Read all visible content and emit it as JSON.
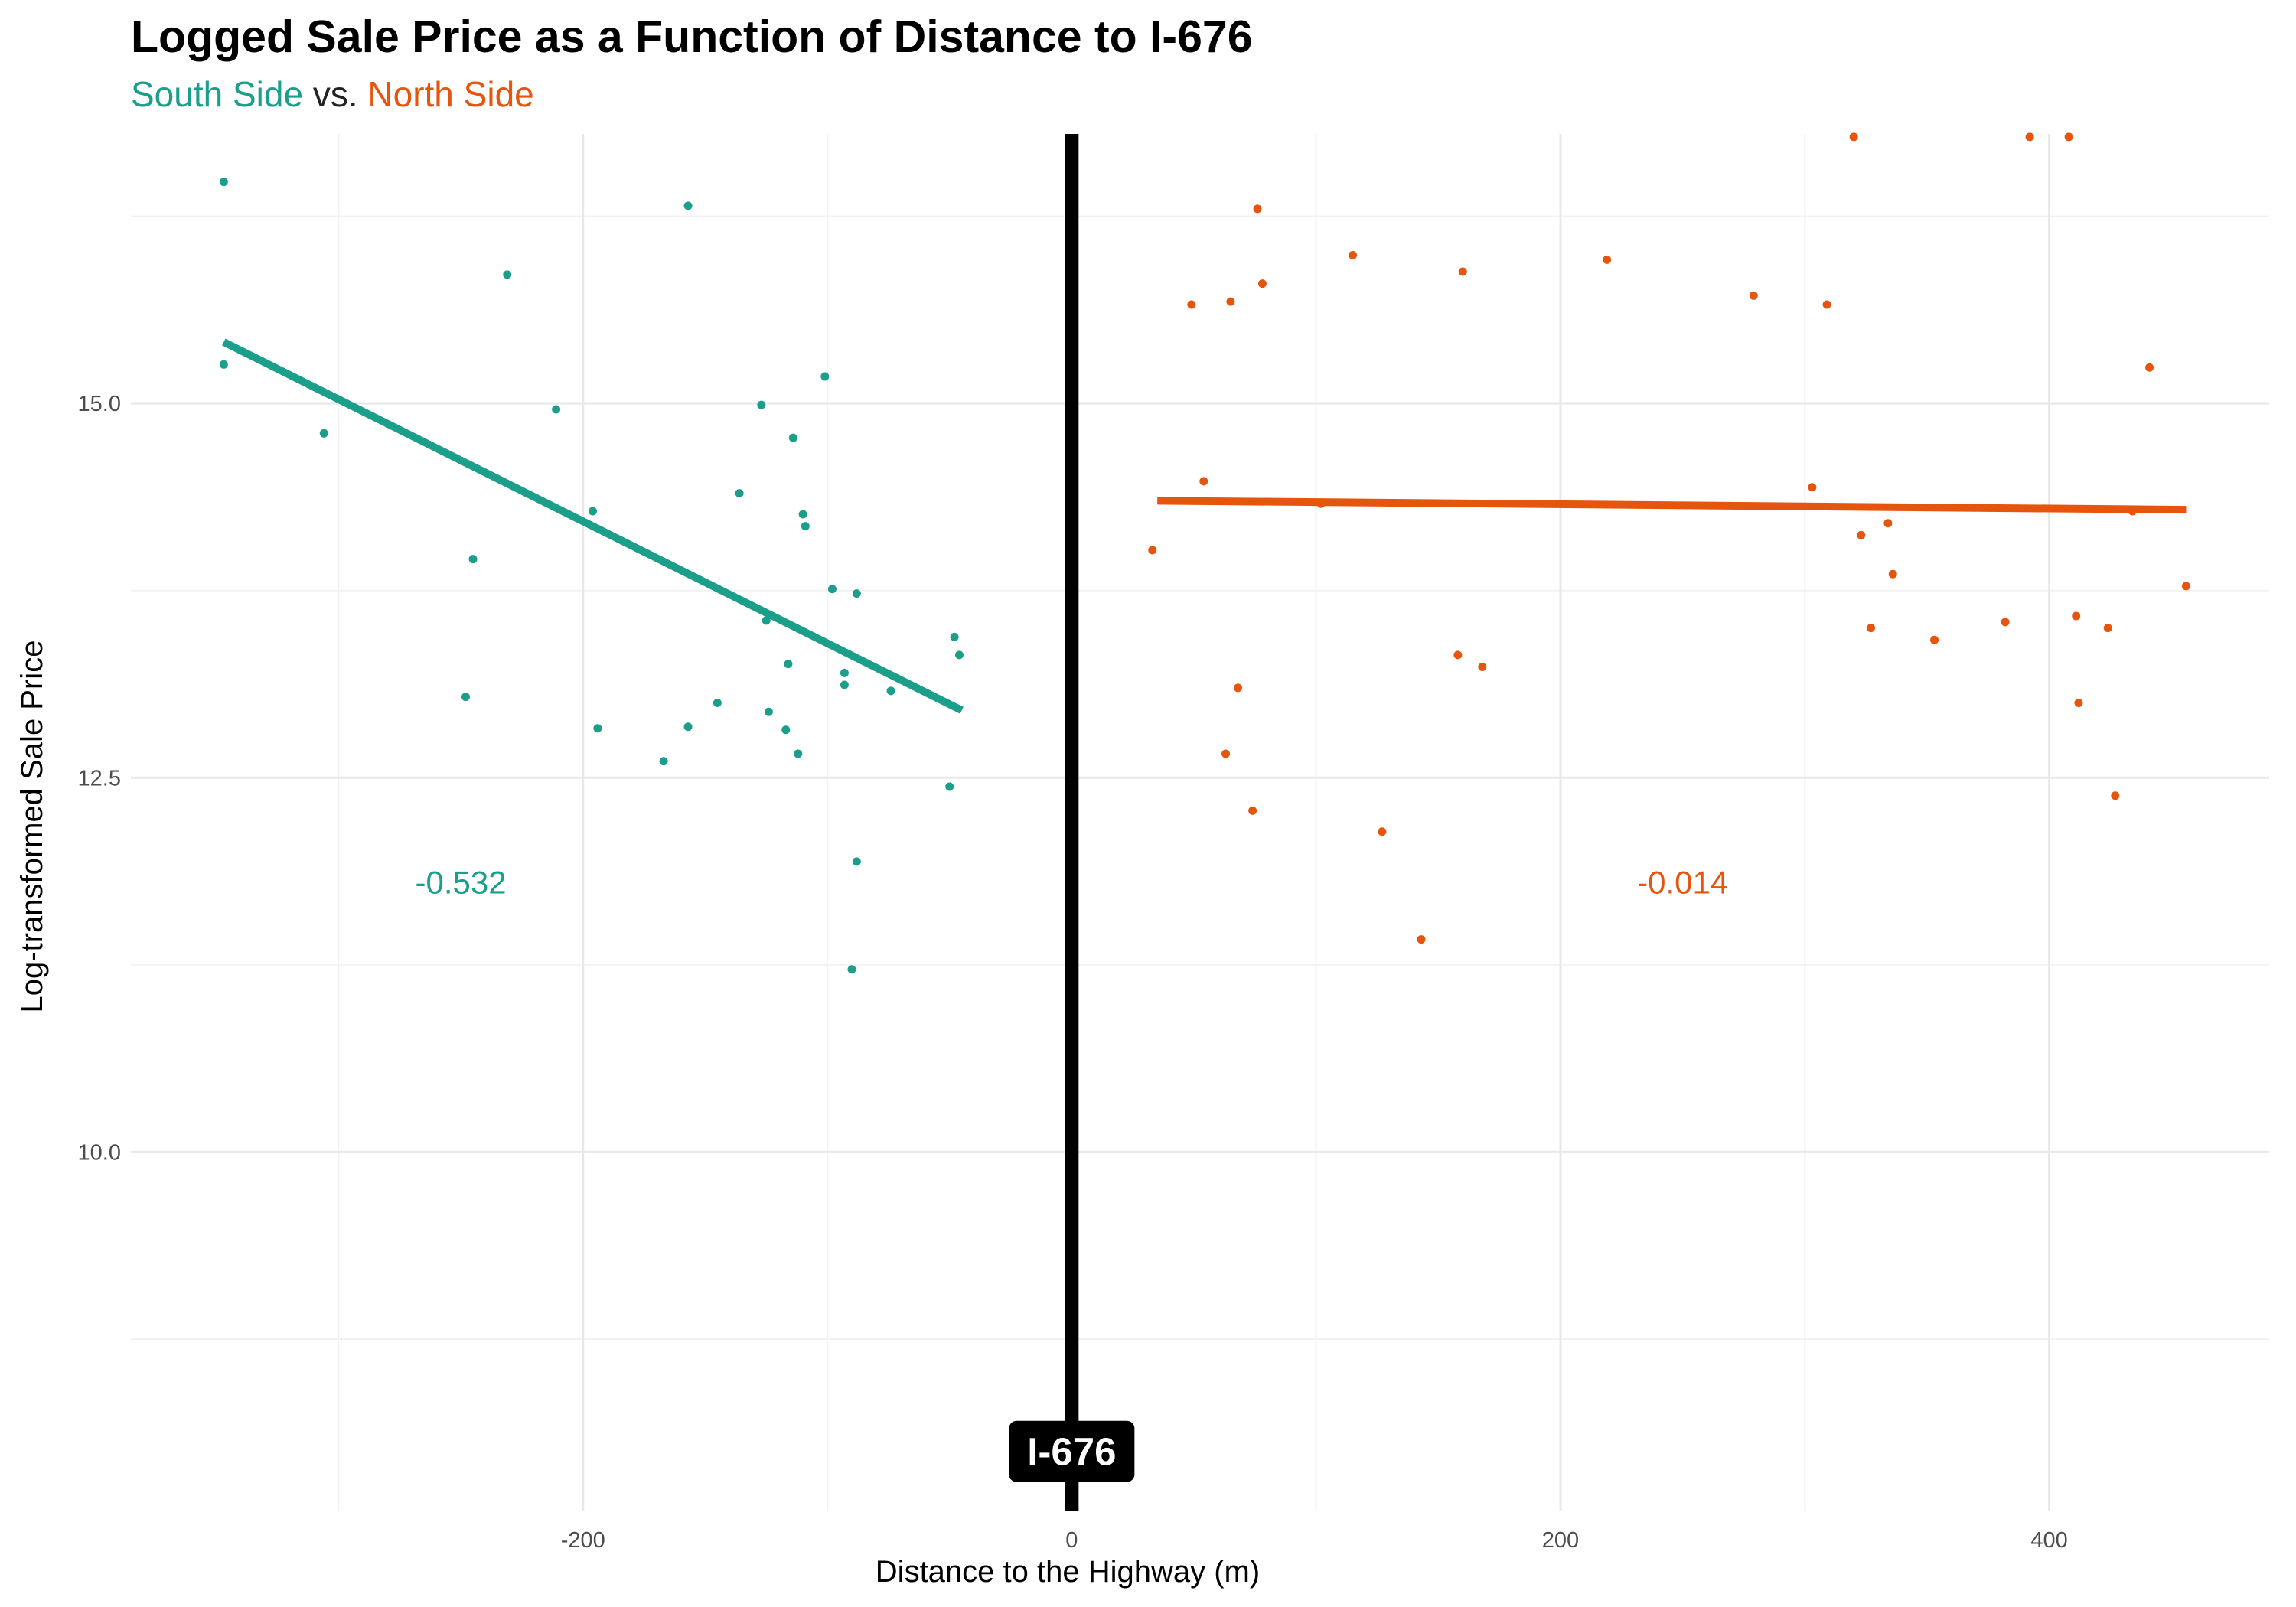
{
  "chart_data": {
    "type": "scatter",
    "title": "Logged Sale Price as a Function of Distance to I-676",
    "subtitle": {
      "south": "South Side",
      "vs": "vs.",
      "north": "North Side"
    },
    "xlabel": "Distance to the Highway (m)",
    "ylabel": "Log-transformed Sale Price",
    "xlim": [
      -385,
      490
    ],
    "ylim": [
      7.6,
      16.8
    ],
    "x_ticks": [
      -200,
      0,
      200,
      400
    ],
    "x_tick_labels": [
      "-200",
      "0",
      "200",
      "400"
    ],
    "y_ticks": [
      10.0,
      12.5,
      15.0
    ],
    "y_tick_labels": [
      "10.0",
      "12.5",
      "15.0"
    ],
    "grid": true,
    "colors": {
      "south": "#1b9e8a",
      "north": "#e6550d",
      "highway": "#000000"
    },
    "highway": {
      "x": 0,
      "label": "I-676",
      "label_y": 8.0
    },
    "series": [
      {
        "name": "South Side",
        "color": "#1b9e8a",
        "points": [
          [
            -347,
            16.48
          ],
          [
            -347,
            15.26
          ],
          [
            -306,
            14.8
          ],
          [
            -248,
            13.04
          ],
          [
            -245,
            13.96
          ],
          [
            -231,
            15.86
          ],
          [
            -211,
            14.96
          ],
          [
            -196,
            14.28
          ],
          [
            -194,
            12.83
          ],
          [
            -167,
            12.61
          ],
          [
            -157,
            16.32
          ],
          [
            -157,
            12.84
          ],
          [
            -145,
            13.0
          ],
          [
            -136,
            14.4
          ],
          [
            -127,
            14.99
          ],
          [
            -125,
            13.55
          ],
          [
            -124,
            12.94
          ],
          [
            -117,
            12.82
          ],
          [
            -116,
            13.26
          ],
          [
            -114,
            14.77
          ],
          [
            -112,
            12.66
          ],
          [
            -110,
            14.26
          ],
          [
            -109,
            14.18
          ],
          [
            -101,
            15.18
          ],
          [
            -98,
            13.76
          ],
          [
            -93,
            13.2
          ],
          [
            -93,
            13.12
          ],
          [
            -88,
            13.73
          ],
          [
            -88,
            11.94
          ],
          [
            -90,
            11.22
          ],
          [
            -74,
            13.08
          ],
          [
            -50,
            12.44
          ],
          [
            -48,
            13.44
          ],
          [
            -46,
            13.32
          ]
        ],
        "fit": {
          "x": [
            -347,
            -45
          ],
          "y": [
            15.41,
            12.95
          ]
        },
        "label": "-0.532",
        "label_pos": [
          -250,
          11.8
        ]
      },
      {
        "name": "North Side",
        "color": "#e6550d",
        "points": [
          [
            33,
            14.02
          ],
          [
            49,
            15.66
          ],
          [
            54,
            14.48
          ],
          [
            63,
            12.66
          ],
          [
            65,
            15.68
          ],
          [
            68,
            13.1
          ],
          [
            74,
            12.28
          ],
          [
            76,
            16.3
          ],
          [
            78,
            15.8
          ],
          [
            102,
            14.33
          ],
          [
            115,
            15.99
          ],
          [
            127,
            12.14
          ],
          [
            143,
            11.42
          ],
          [
            158,
            13.32
          ],
          [
            160,
            15.88
          ],
          [
            168,
            13.24
          ],
          [
            219,
            15.96
          ],
          [
            279,
            15.72
          ],
          [
            303,
            14.44
          ],
          [
            309,
            15.66
          ],
          [
            320,
            16.78
          ],
          [
            323,
            14.12
          ],
          [
            327,
            13.5
          ],
          [
            334,
            14.2
          ],
          [
            336,
            13.86
          ],
          [
            353,
            13.42
          ],
          [
            382,
            13.54
          ],
          [
            392,
            16.78
          ],
          [
            408,
            16.78
          ],
          [
            411,
            13.58
          ],
          [
            412,
            13.0
          ],
          [
            424,
            13.5
          ],
          [
            427,
            12.38
          ],
          [
            434,
            14.28
          ],
          [
            441,
            15.24
          ],
          [
            456,
            13.78
          ]
        ],
        "fit": {
          "x": [
            35,
            456
          ],
          "y": [
            14.35,
            14.29
          ]
        },
        "label": "-0.014",
        "label_pos": [
          250,
          11.8
        ]
      }
    ]
  }
}
